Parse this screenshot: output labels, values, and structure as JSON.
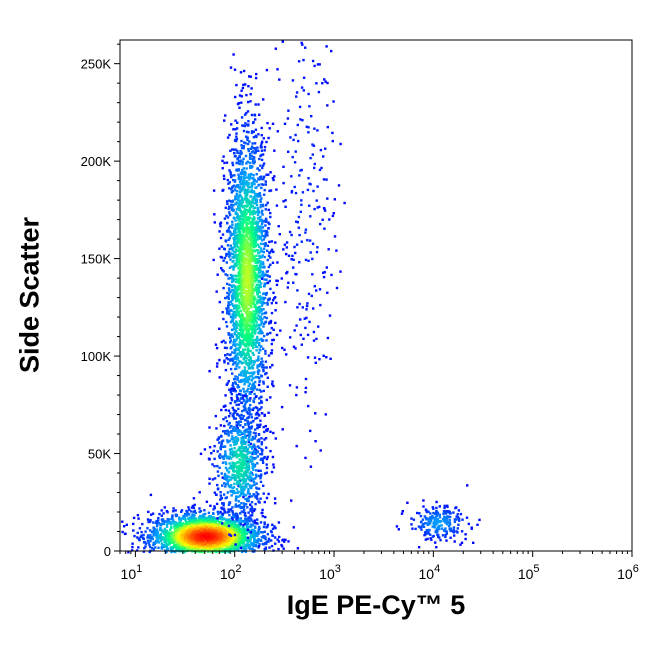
{
  "chart_data": {
    "type": "scatter",
    "subtype": "flow-cytometry-density-plot",
    "title": "",
    "xlabel": "IgE PE-Cy™ 5",
    "ylabel": "Side Scatter",
    "xscale": "log",
    "xlim": [
      7,
      1000000
    ],
    "ylim": [
      0,
      262144
    ],
    "x_ticks": [
      {
        "value": 10,
        "base": "10",
        "exp": "1"
      },
      {
        "value": 100,
        "base": "10",
        "exp": "2"
      },
      {
        "value": 1000,
        "base": "10",
        "exp": "3"
      },
      {
        "value": 10000,
        "base": "10",
        "exp": "4"
      },
      {
        "value": 100000,
        "base": "10",
        "exp": "5"
      },
      {
        "value": 1000000,
        "base": "10",
        "exp": "6"
      }
    ],
    "y_ticks": [
      {
        "value": 0,
        "label": "0"
      },
      {
        "value": 50000,
        "label": "50K"
      },
      {
        "value": 100000,
        "label": "100K"
      },
      {
        "value": 150000,
        "label": "150K"
      },
      {
        "value": 200000,
        "label": "200K"
      },
      {
        "value": 250000,
        "label": "250K"
      }
    ],
    "colormap": [
      "#0000ff",
      "#00a0ff",
      "#00ff80",
      "#ffff00",
      "#ff8000",
      "#ff0000"
    ],
    "populations": [
      {
        "cx": 50,
        "cy": 8000,
        "sx": 0.28,
        "sy": 6000,
        "n": 2600,
        "peak": 1.0
      },
      {
        "cx": 130,
        "cy": 140000,
        "sx": 0.11,
        "sy": 38000,
        "n": 2600,
        "peak": 0.55
      },
      {
        "cx": 110,
        "cy": 45000,
        "sx": 0.13,
        "sy": 15000,
        "n": 700,
        "peak": 0.35
      },
      {
        "cx": 11000,
        "cy": 15000,
        "sx": 0.15,
        "sy": 4500,
        "n": 220,
        "peak": 0.2
      },
      {
        "cx": 500,
        "cy": 180000,
        "sx": 0.16,
        "sy": 60000,
        "n": 260,
        "peak": 0.05
      }
    ]
  }
}
